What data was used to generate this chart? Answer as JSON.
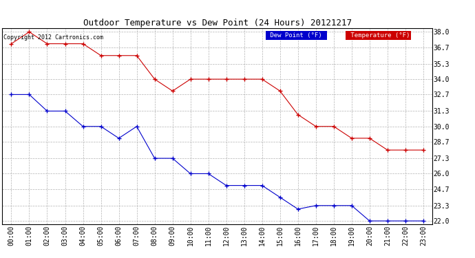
{
  "title": "Outdoor Temperature vs Dew Point (24 Hours) 20121217",
  "copyright_text": "Copyright 2012 Cartronics.com",
  "x_labels": [
    "00:00",
    "01:00",
    "02:00",
    "03:00",
    "04:00",
    "05:00",
    "06:00",
    "07:00",
    "08:00",
    "09:00",
    "10:00",
    "11:00",
    "12:00",
    "13:00",
    "14:00",
    "15:00",
    "16:00",
    "17:00",
    "18:00",
    "19:00",
    "20:00",
    "21:00",
    "22:00",
    "23:00"
  ],
  "temperature": [
    37.0,
    38.0,
    37.0,
    37.0,
    37.0,
    36.0,
    36.0,
    36.0,
    34.0,
    33.0,
    34.0,
    34.0,
    34.0,
    34.0,
    34.0,
    33.0,
    31.0,
    30.0,
    30.0,
    29.0,
    29.0,
    28.0,
    28.0,
    28.0
  ],
  "dew_point": [
    32.7,
    32.7,
    31.3,
    31.3,
    30.0,
    30.0,
    29.0,
    30.0,
    27.3,
    27.3,
    26.0,
    26.0,
    25.0,
    25.0,
    25.0,
    24.0,
    23.0,
    23.3,
    23.3,
    23.3,
    22.0,
    22.0,
    22.0,
    22.0
  ],
  "temp_color": "#cc0000",
  "dew_color": "#0000cc",
  "y_min": 22.0,
  "y_max": 38.0,
  "y_ticks": [
    22.0,
    23.3,
    24.7,
    26.0,
    27.3,
    28.7,
    30.0,
    31.3,
    32.7,
    34.0,
    35.3,
    36.7,
    38.0
  ],
  "grid_color": "#aaaaaa",
  "background_color": "#ffffff",
  "legend_dew_bg": "#0000cc",
  "legend_temp_bg": "#cc0000",
  "legend_text_color": "#ffffff",
  "title_fontsize": 9,
  "tick_fontsize": 7
}
